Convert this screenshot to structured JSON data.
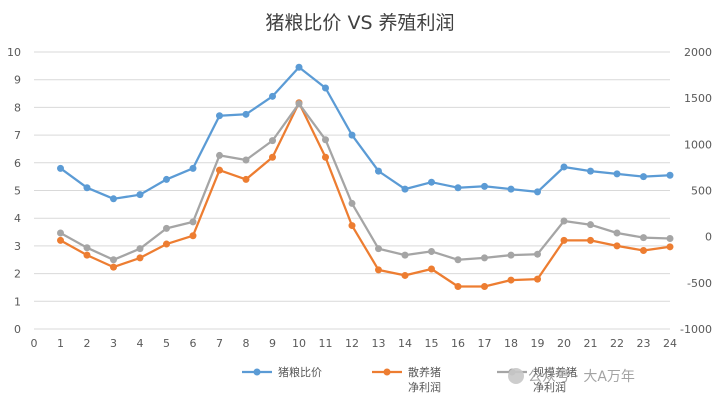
{
  "chart_data": {
    "type": "line",
    "title": "猪粮比价 VS 养殖利润",
    "x": [
      1,
      2,
      3,
      4,
      5,
      6,
      7,
      8,
      9,
      10,
      11,
      12,
      13,
      14,
      15,
      16,
      17,
      18,
      19,
      20,
      21,
      22,
      23,
      24
    ],
    "x_ticks": [
      0,
      1,
      2,
      3,
      4,
      5,
      6,
      7,
      8,
      9,
      10,
      11,
      12,
      13,
      14,
      15,
      16,
      17,
      18,
      19,
      20,
      21,
      22,
      23,
      24
    ],
    "xlim": [
      0,
      24
    ],
    "ylim_left": [
      0,
      10
    ],
    "y_ticks_left": [
      0,
      1,
      2,
      3,
      4,
      5,
      6,
      7,
      8,
      9,
      10
    ],
    "ylim_right": [
      -1000,
      2000
    ],
    "y_ticks_right": [
      -1000,
      -500,
      0,
      500,
      1000,
      1500,
      2000
    ],
    "grid": true,
    "legend_position": "bottom",
    "series": [
      {
        "name": "猪粮比价",
        "axis": "left",
        "color": "#5b9bd5",
        "values": [
          5.8,
          5.1,
          4.7,
          4.85,
          5.4,
          5.8,
          7.7,
          7.75,
          8.4,
          9.45,
          8.7,
          7.0,
          5.7,
          5.05,
          5.3,
          5.1,
          5.15,
          5.05,
          4.95,
          5.85,
          5.7,
          5.6,
          5.5,
          5.55
        ]
      },
      {
        "name": "散养猪\n净利润",
        "name_lines": [
          "散养猪",
          "净利润"
        ],
        "axis": "right",
        "color": "#ed7d31",
        "values": [
          -40,
          -200,
          -330,
          -230,
          -80,
          10,
          720,
          620,
          860,
          1450,
          860,
          120,
          -360,
          -420,
          -350,
          -540,
          -540,
          -470,
          -460,
          -40,
          -40,
          -100,
          -150,
          -110
        ]
      },
      {
        "name": "规模养猪\n净利润",
        "name_lines": [
          "规模养猪",
          "净利润"
        ],
        "axis": "right",
        "color": "#a5a5a5",
        "values": [
          40,
          -120,
          -250,
          -130,
          90,
          160,
          880,
          830,
          1040,
          1440,
          1050,
          360,
          -130,
          -200,
          -160,
          -250,
          -230,
          -200,
          -190,
          170,
          130,
          40,
          -10,
          -20
        ]
      }
    ]
  },
  "watermark": "公众号 · 大A万年"
}
